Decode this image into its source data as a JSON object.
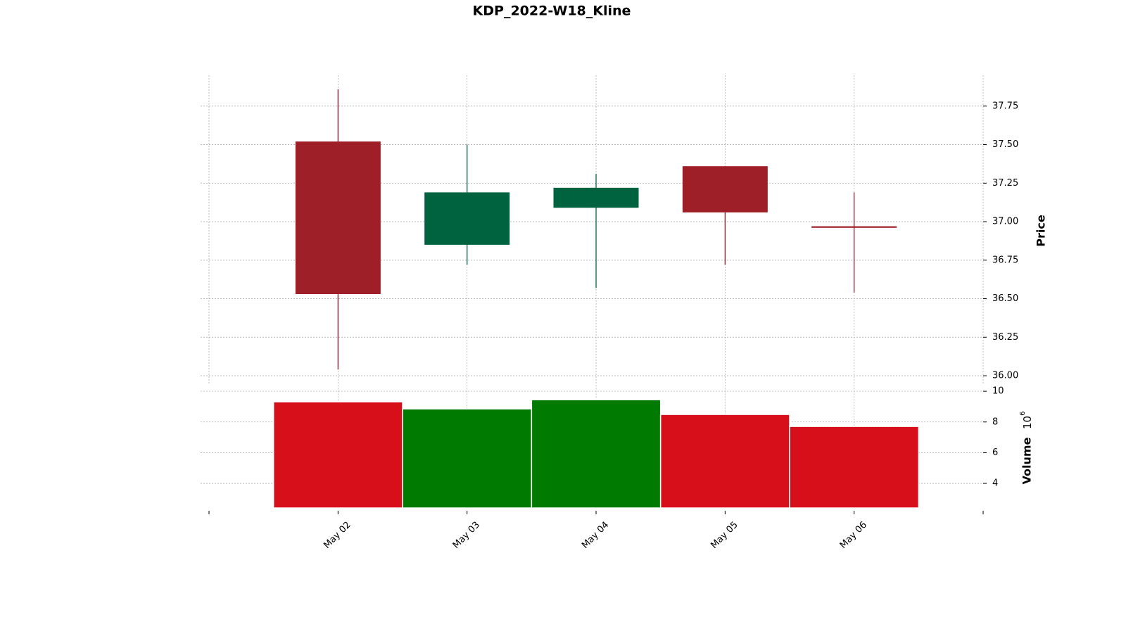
{
  "chart_data": {
    "type": "candlestick",
    "title": "KDP_2022-W18_Kline",
    "categories": [
      "May 02",
      "May 03",
      "May 04",
      "May 05",
      "May 06"
    ],
    "open": [
      37.52,
      36.85,
      37.09,
      37.36,
      36.97
    ],
    "high": [
      37.86,
      37.5,
      37.31,
      37.36,
      37.19
    ],
    "low": [
      36.04,
      36.72,
      36.57,
      36.72,
      36.54
    ],
    "close": [
      36.53,
      37.19,
      37.22,
      37.06,
      36.96
    ],
    "up_color": "#006340",
    "down_color": "#9e1f28",
    "ylabel": "Price",
    "ylim": [
      35.95,
      37.95
    ],
    "yticks": [
      {
        "value": 36,
        "label": "36.00"
      },
      {
        "value": 36.25,
        "label": "36.25"
      },
      {
        "value": 36.5,
        "label": "36.50"
      },
      {
        "value": 36.75,
        "label": "36.75"
      },
      {
        "value": 37,
        "label": "37.00"
      },
      {
        "value": 37.25,
        "label": "37.25"
      },
      {
        "value": 37.5,
        "label": "37.50"
      },
      {
        "value": 37.75,
        "label": "37.75"
      }
    ],
    "volume": {
      "label": "Volume",
      "scale_base": "10",
      "scale_exponent": "6",
      "values": [
        9.31,
        8.85,
        9.45,
        8.49,
        7.71
      ],
      "up_color": "#007a00",
      "down_color": "#d60f1a",
      "ylim": [
        2.4,
        10.4
      ],
      "yticks": [
        4,
        6,
        8,
        10
      ]
    },
    "grid": true
  }
}
